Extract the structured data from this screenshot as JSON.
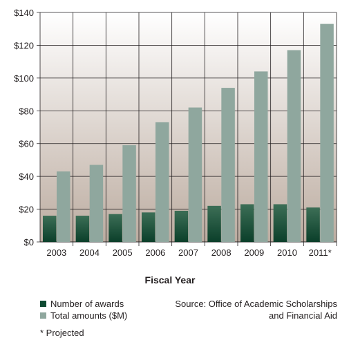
{
  "chart_data": {
    "type": "bar",
    "categories": [
      "2003",
      "2004",
      "2005",
      "2006",
      "2007",
      "2008",
      "2009",
      "2010",
      "2011*"
    ],
    "series": [
      {
        "name": "Number of awards",
        "values": [
          16,
          16,
          17,
          18,
          19,
          22,
          23,
          23,
          21
        ],
        "color": "#0f4a32"
      },
      {
        "name": "Total amounts ($M)",
        "values": [
          43,
          47,
          59,
          73,
          82,
          94,
          104,
          117,
          133
        ],
        "color": "#8fa79e"
      }
    ],
    "yticks": [
      "$0",
      "$20",
      "$40",
      "$60",
      "$80",
      "$100",
      "$120",
      "$140"
    ],
    "ylim": [
      0,
      140
    ],
    "xlabel": "Fiscal Year",
    "grid": true,
    "legend_position": "bottom-left"
  },
  "source_lines": [
    "Source: Office of Academic Scholarships",
    "and Financial Aid"
  ],
  "footnote": "*  Projected"
}
